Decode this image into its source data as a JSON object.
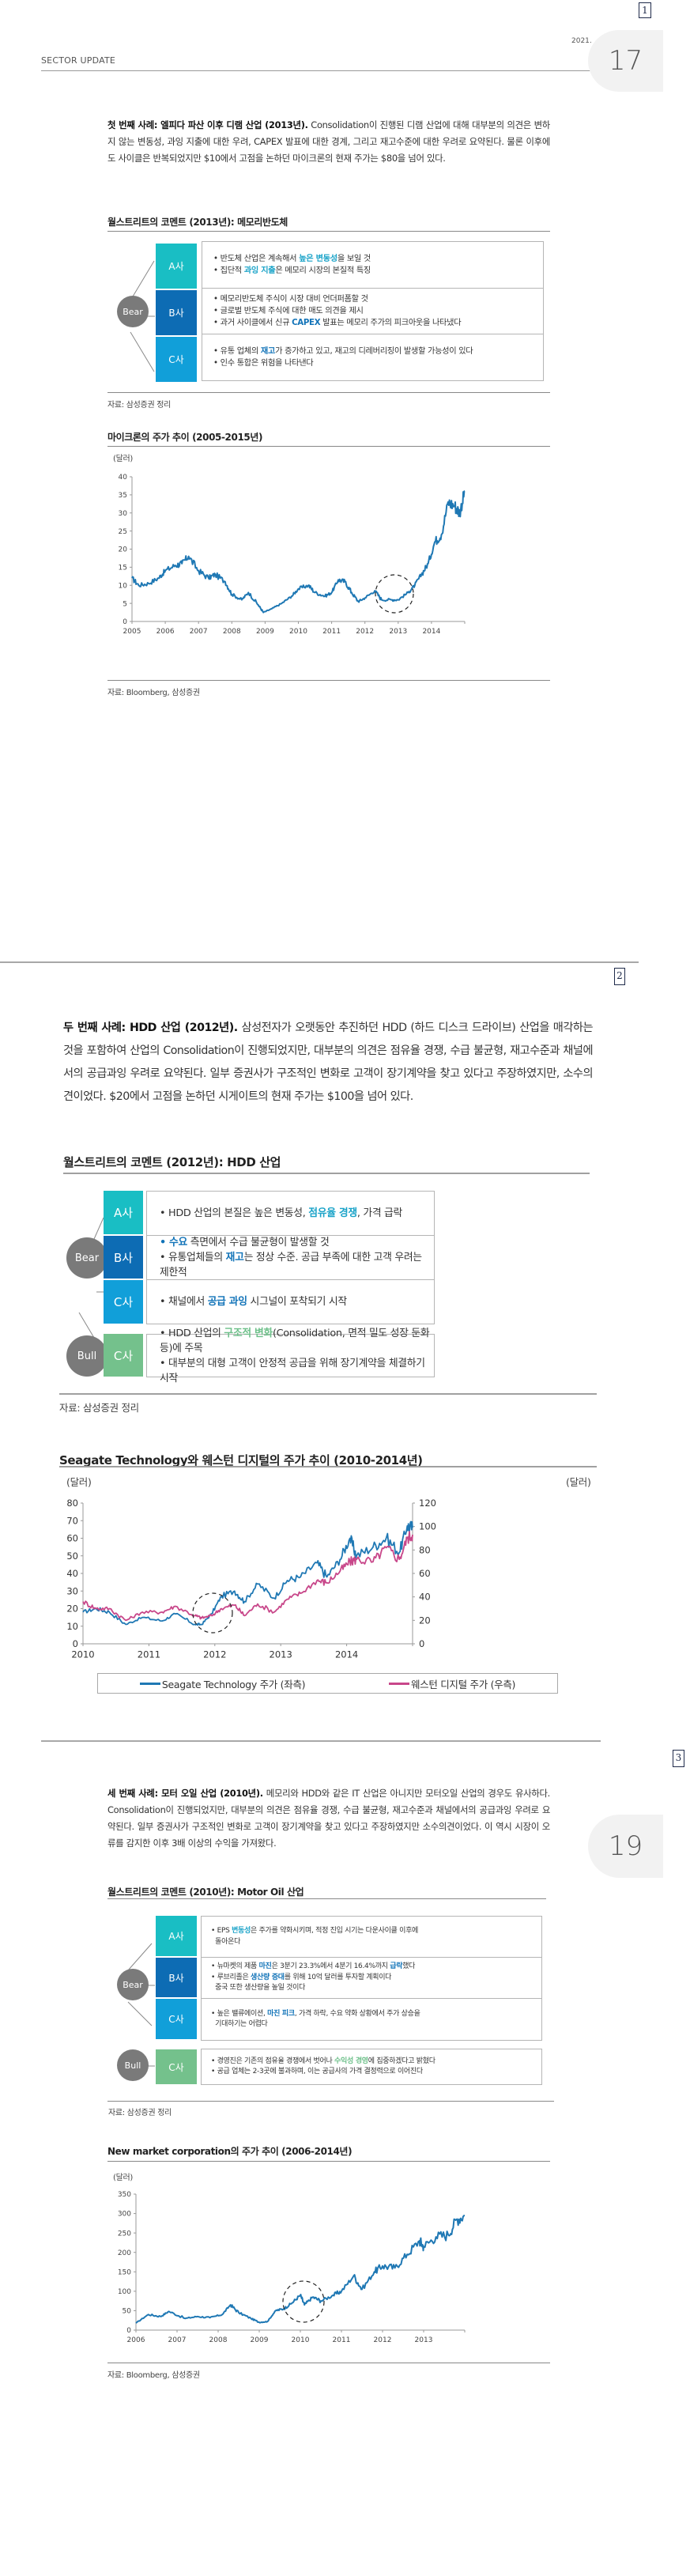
{
  "page_markers": [
    "1",
    "2",
    "3"
  ],
  "header": {
    "section_label": "SECTOR UPDATE",
    "date_fragment": "2021. ",
    "page_badges": [
      "17",
      "19"
    ]
  },
  "case1": {
    "lead_bold": "첫 번째 사례: 엘피다 파산 이후 디램 산업 (2013년).",
    "body": " Consolidation이 진행된 디램 산업에 대해 대부분의 의견은 변하지 않는 변동성, 과잉 지출에 대한 우려, CAPEX 발표에 대한 경계, 그리고 재고수준에 대한 우려로 요약된다. 물론 이후에도 사이클은 반복되었지만 $10에서 고점을 논하던 마이크론의 현재 주가는 $80을 넘어 있다.",
    "table_title": "월스트리트의 코멘트 (2013년): 메모리반도체",
    "stance_bear": "Bear",
    "rows": [
      {
        "company": "A사",
        "color": "#19bec4",
        "lines": [
          [
            {
              "t": "반도체 산업은 계속해서 "
            },
            {
              "t": "높은 변동성",
              "hl": "blue"
            },
            {
              "t": "을 보일 것"
            }
          ],
          [
            {
              "t": "집단적 "
            },
            {
              "t": "과잉 지출",
              "hl": "blue"
            },
            {
              "t": "은 메모리 시장의 본질적 특징"
            }
          ]
        ]
      },
      {
        "company": "B사",
        "color": "#0d6cb4",
        "lines": [
          [
            {
              "t": "메모리반도체 주식이 시장 대비 언더퍼폼할 것"
            }
          ],
          [
            {
              "t": "글로벌 반도체 주식에 대한 매도 의견을 제시"
            }
          ],
          [
            {
              "t": "과거 사이클에서 신규 "
            },
            {
              "t": "CAPEX",
              "hl": "navy"
            },
            {
              "t": " 발표는 메모리 주가의 피크아웃을 나타냈다"
            }
          ]
        ]
      },
      {
        "company": "C사",
        "color": "#119fd9",
        "lines": [
          [
            {
              "t": "유통 업체의 "
            },
            {
              "t": "재고",
              "hl": "navy"
            },
            {
              "t": "가 증가하고 있고, 재고의 디레버리징이 발생할 가능성이 있다"
            }
          ],
          [
            {
              "t": "인수 통합은 위험을 나타낸다"
            }
          ]
        ]
      }
    ],
    "table_source": "자료: 삼성증권 정리",
    "chart_title": "마이크론의 주가 추이 (2005-2015년)",
    "chart_unit": "(달러)",
    "chart_source": "자료: Bloomberg, 삼성증권"
  },
  "case2": {
    "lead_bold": "두 번째 사례: HDD 산업 (2012년).",
    "body": " 삼성전자가 오랫동안 추진하던 HDD (하드 디스크 드라이브) 산업을 매각하는 것을 포함하여 산업의 Consolidation이 진행되었지만, 대부분의 의견은 점유율 경쟁, 수급 불균형, 재고수준과 채널에서의 공급과잉 우려로 요약된다. 일부 증권사가 구조적인 변화로 고객이 장기계약을 찾고 있다고 주장하였지만, 소수의견이었다. $20에서 고점을 논하던 시게이트의 현재 주가는 $100을 넘어 있다.",
    "table_title": "월스트리트의 코멘트 (2012년): HDD 산업",
    "stance_bear": "Bear",
    "stance_bull": "Bull",
    "rows": [
      {
        "company": "A사",
        "color": "#19bec4",
        "lines": [
          [
            {
              "t": "HDD 산업의 본질은 높은 변동성, "
            },
            {
              "t": "점유율 경쟁",
              "hl": "blue"
            },
            {
              "t": ", 가격 급락"
            }
          ]
        ]
      },
      {
        "company": "B사",
        "color": "#0d6cb4",
        "lines": [
          [
            {
              "t": "수요",
              "hl": "navy"
            },
            {
              "t": " 측면에서 수급 불균형이 발생할 것"
            }
          ],
          [
            {
              "t": "유통업체들의 "
            },
            {
              "t": "재고",
              "hl": "navy"
            },
            {
              "t": "는 정상 수준. 공급 부족에 대한 고객 우려는 제한적"
            }
          ]
        ]
      },
      {
        "company": "C사",
        "color": "#119fd9",
        "lines": [
          [
            {
              "t": "채널에서 "
            },
            {
              "t": "공급 과잉",
              "hl": "navy"
            },
            {
              "t": " 시그널이 포착되기 시작"
            }
          ]
        ]
      }
    ],
    "bull_row": {
      "company": "C사",
      "color": "#74c18c",
      "lines": [
        [
          {
            "t": "HDD 산업의 "
          },
          {
            "t": "구조적 변화",
            "hl": "green"
          },
          {
            "t": "(Consolidation, 면적 밀도 성장 둔화 등)에 주목"
          }
        ],
        [
          {
            "t": "대부분의 대형 고객이 안정적 공급을 위해 장기계약을 체결하기 시작"
          }
        ]
      ]
    },
    "table_source": "자료: 삼성증권 정리",
    "chart_title": "Seagate Technology와 웨스턴 디지털의 주가 추이 (2010-2014년)",
    "chart_unit_left": "(달러)",
    "chart_unit_right": "(달러)",
    "legend": [
      {
        "label": "Seagate Technology 주가 (좌측)",
        "color": "#1f78b4"
      },
      {
        "label": "웨스턴 디지털 주가 (우측)",
        "color": "#c8478a"
      }
    ]
  },
  "case3": {
    "lead_bold": "세 번째 사례: 모터 오일 산업 (2010년).",
    "body": " 메모리와 HDD와 같은 IT 산업은 아니지만 모터오일 산업의 경우도 유사하다. Consolidation이 진행되었지만, 대부분의 의견은 점유율 경쟁, 수급 불균형, 재고수준과 채널에서의 공급과잉 우려로 요약된다. 일부 증권사가 구조적인 변화로 고객이 장기계약을 찾고 있다고 주장하였지만 소수의견이었다. 이 역시 시장이 오류를 감지한 이후 3배 이상의 수익을 가져왔다.",
    "table_title": "월스트리트의 코멘트 (2010년): Motor Oil 산업",
    "stance_bear": "Bear",
    "stance_bull": "Bull",
    "rows": [
      {
        "company": "A사",
        "color": "#19bec4",
        "lines": [
          [
            {
              "t": "EPS "
            },
            {
              "t": "변동성",
              "hl": "blue"
            },
            {
              "t": "은 주가를 약화시키며, 적정 진입 시기는 다운사이클 이후에"
            }
          ],
          [
            {
              "t": "돌아온다",
              "cont": true
            }
          ]
        ]
      },
      {
        "company": "B사",
        "color": "#0d6cb4",
        "lines": [
          [
            {
              "t": "뉴마켓의 제품 "
            },
            {
              "t": "마진",
              "hl": "navy"
            },
            {
              "t": "은 3분기 23.3%에서 4분기 16.4%까지 "
            },
            {
              "t": "급락",
              "hl": "navy"
            },
            {
              "t": "했다"
            }
          ],
          [
            {
              "t": "루브리졸은 "
            },
            {
              "t": "생산량 증대",
              "hl": "navy"
            },
            {
              "t": "를 위해 10억 달러를 투자할 계획이다"
            }
          ],
          [
            {
              "t": "중국 또한 생산량을 높일 것이다",
              "cont": true
            }
          ]
        ]
      },
      {
        "company": "C사",
        "color": "#119fd9",
        "lines": [
          [
            {
              "t": "높은 밸류에이션, "
            },
            {
              "t": "마진 피크",
              "hl": "navy"
            },
            {
              "t": ", 가격 하락, 수요 약화 상황에서 주가 상승을"
            }
          ],
          [
            {
              "t": "기대하기는 어렵다",
              "cont": true
            }
          ]
        ]
      }
    ],
    "bull_row": {
      "company": "C사",
      "color": "#74c18c",
      "lines": [
        [
          {
            "t": "경영진은 기존의 점유율 경쟁에서 벗어나 "
          },
          {
            "t": "수익성 경영",
            "hl": "green"
          },
          {
            "t": "에 집중하겠다고 밝혔다"
          }
        ],
        [
          {
            "t": "공급 업체는 2-3곳에 불과하며, 이는 공급사의 가격 결정력으로 이어진다"
          }
        ]
      ]
    },
    "table_source": "자료: 삼성증권 정리",
    "chart_title": "New market corporation의 주가 추이 (2006-2014년)",
    "chart_unit": "(달러)",
    "chart_source": "자료: Bloomberg, 삼성증권"
  },
  "chart_data": [
    {
      "type": "line",
      "title": "마이크론의 주가 추이 (2005-2015년)",
      "xlabel": "",
      "ylabel": "(달러)",
      "x_ticks": [
        "2005",
        "2006",
        "2007",
        "2008",
        "2009",
        "2010",
        "2011",
        "2012",
        "2013",
        "2014"
      ],
      "y_ticks": [
        0,
        5,
        10,
        15,
        20,
        25,
        30,
        35,
        40
      ],
      "ylim": [
        0,
        40
      ],
      "grid": false,
      "annotation": "dashed circle around 2012 H2 - 2013 H1 trough",
      "series": [
        {
          "name": "Micron",
          "color": "#1f78b4",
          "x": [
            2005.0,
            2005.2,
            2005.5,
            2005.8,
            2006.0,
            2006.3,
            2006.5,
            2006.7,
            2007.0,
            2007.3,
            2007.5,
            2007.8,
            2008.0,
            2008.3,
            2008.5,
            2008.8,
            2008.95,
            2009.2,
            2009.5,
            2009.8,
            2010.0,
            2010.3,
            2010.5,
            2010.8,
            2011.0,
            2011.2,
            2011.4,
            2011.6,
            2011.8,
            2012.0,
            2012.3,
            2012.5,
            2012.8,
            2013.0,
            2013.3,
            2013.5,
            2013.7,
            2013.9,
            2014.1,
            2014.3,
            2014.5,
            2014.7,
            2014.85,
            2015.0
          ],
          "values": [
            12,
            10,
            10.5,
            12,
            14,
            15.5,
            16,
            18,
            14,
            12,
            13,
            11,
            7.5,
            6,
            8,
            4.5,
            2.5,
            3.5,
            5,
            7,
            9,
            10,
            8,
            7,
            8,
            11.5,
            11,
            8,
            5.5,
            6.5,
            8.5,
            6,
            6,
            6,
            8,
            10,
            13,
            16,
            22,
            24,
            33,
            32,
            30,
            36
          ]
        }
      ]
    },
    {
      "type": "line",
      "title": "Seagate Technology와 웨스턴 디지털의 주가 추이 (2010-2014년)",
      "xlabel": "",
      "ylabel_left": "(달러)",
      "ylabel_right": "(달러)",
      "x_ticks": [
        "2010",
        "2011",
        "2012",
        "2013",
        "2014"
      ],
      "y_ticks_left": [
        0,
        10,
        20,
        30,
        40,
        50,
        60,
        70,
        80
      ],
      "y_ticks_right": [
        0,
        20,
        40,
        60,
        80,
        100,
        120
      ],
      "ylim_left": [
        0,
        80
      ],
      "ylim_right": [
        0,
        120
      ],
      "grid": false,
      "legend_position": "bottom",
      "annotation": "dashed circle around late 2011 - early 2012",
      "series": [
        {
          "name": "Seagate Technology 주가 (좌측)",
          "axis": "left",
          "color": "#1f78b4",
          "x": [
            2010.0,
            2010.2,
            2010.4,
            2010.65,
            2010.9,
            2011.2,
            2011.4,
            2011.7,
            2011.8,
            2011.95,
            2012.1,
            2012.3,
            2012.45,
            2012.65,
            2012.9,
            2013.1,
            2013.3,
            2013.55,
            2013.7,
            2013.9,
            2014.05,
            2014.15,
            2014.4,
            2014.6,
            2014.8,
            2014.92,
            2015.0
          ],
          "values": [
            18,
            20,
            18,
            11,
            15,
            13,
            17,
            11,
            11,
            17,
            27,
            30,
            24,
            34,
            26,
            36,
            38,
            46,
            38,
            48,
            60,
            50,
            55,
            60,
            52,
            67,
            66
          ]
        },
        {
          "name": "웨스턴 디지털 주가 (우측)",
          "axis": "right",
          "color": "#c8478a",
          "x": [
            2010.0,
            2010.2,
            2010.4,
            2010.65,
            2010.9,
            2011.2,
            2011.4,
            2011.7,
            2011.8,
            2011.95,
            2012.1,
            2012.3,
            2012.45,
            2012.65,
            2012.9,
            2013.1,
            2013.3,
            2013.55,
            2013.7,
            2013.9,
            2014.05,
            2014.15,
            2014.4,
            2014.6,
            2014.8,
            2014.92,
            2015.0
          ],
          "values": [
            36,
            30,
            30,
            20,
            27,
            27,
            32,
            24,
            22,
            24,
            30,
            33,
            24,
            34,
            27,
            38,
            43,
            54,
            52,
            62,
            70,
            72,
            70,
            82,
            72,
            90,
            93
          ]
        }
      ]
    },
    {
      "type": "line",
      "title": "New market corporation의 주가 추이 (2006-2014년)",
      "xlabel": "",
      "ylabel": "(달러)",
      "x_ticks": [
        "2006",
        "2007",
        "2008",
        "2009",
        "2010",
        "2011",
        "2012",
        "2013"
      ],
      "y_ticks": [
        0,
        50,
        100,
        150,
        200,
        250,
        300,
        350
      ],
      "ylim": [
        0,
        350
      ],
      "grid": false,
      "annotation": "dashed circle around 2010",
      "series": [
        {
          "name": "NewMarket",
          "color": "#1f78b4",
          "x": [
            2006.0,
            2006.3,
            2006.6,
            2006.8,
            2007.2,
            2007.5,
            2007.8,
            2008.1,
            2008.3,
            2008.5,
            2008.8,
            2009.0,
            2009.2,
            2009.4,
            2009.6,
            2009.8,
            2010.0,
            2010.1,
            2010.3,
            2010.5,
            2010.8,
            2011.0,
            2011.3,
            2011.5,
            2011.8,
            2012.0,
            2012.3,
            2012.6,
            2012.9,
            2013.0,
            2013.3,
            2013.6,
            2013.8,
            2014.0
          ],
          "values": [
            18,
            40,
            35,
            48,
            30,
            35,
            32,
            40,
            65,
            45,
            30,
            20,
            22,
            50,
            55,
            70,
            90,
            65,
            85,
            75,
            90,
            100,
            140,
            105,
            150,
            165,
            160,
            195,
            230,
            215,
            240,
            245,
            285,
            295
          ]
        }
      ]
    }
  ]
}
